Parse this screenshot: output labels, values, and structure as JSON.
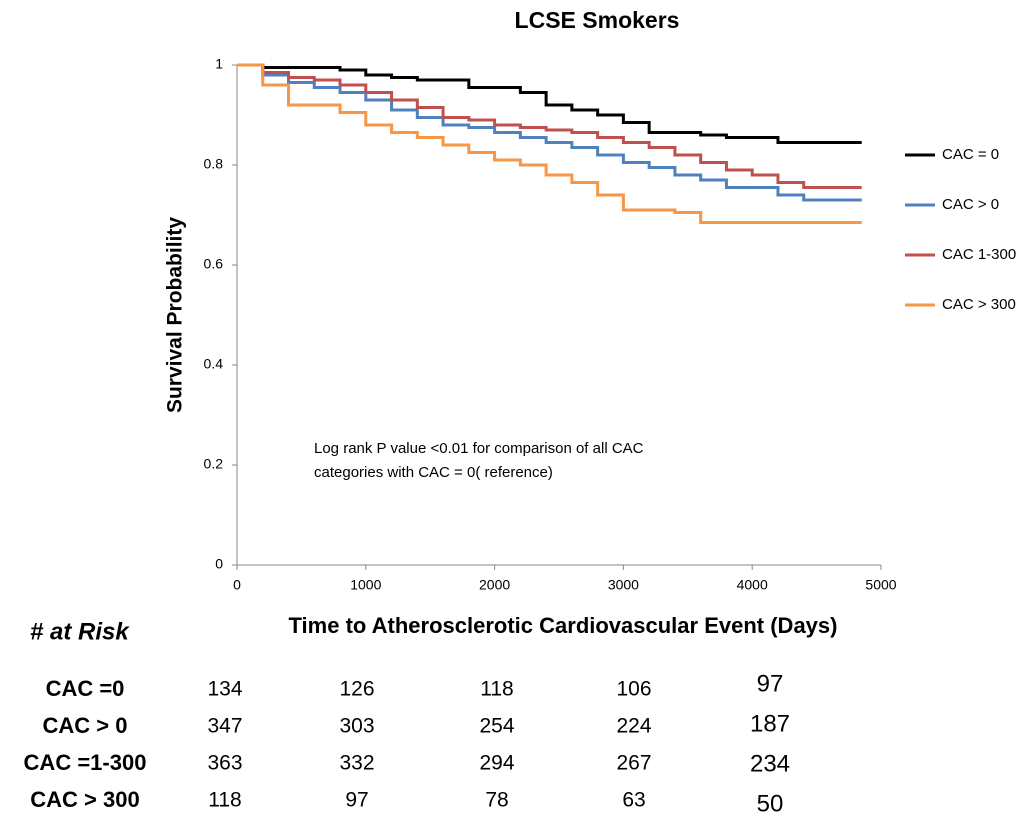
{
  "chart_data": {
    "type": "line",
    "step": true,
    "title": "LCSE Smokers",
    "x_label": "Time to Atherosclerotic Cardiovascular Event (Days)",
    "y_label": "Survival Probability",
    "annotation": [
      "Log rank P value <0.01 for comparison of all CAC",
      "categories with CAC = 0( reference)"
    ],
    "x": [
      0,
      200,
      400,
      600,
      800,
      1000,
      1200,
      1400,
      1600,
      1800,
      2000,
      2200,
      2400,
      2600,
      2800,
      3000,
      3200,
      3400,
      3600,
      3800,
      4000,
      4200,
      4400,
      4600,
      4850
    ],
    "series": [
      {
        "name": "CAC = 0",
        "color": "#000000",
        "values": [
          1,
          0.995,
          0.995,
          0.995,
          0.99,
          0.98,
          0.975,
          0.97,
          0.97,
          0.955,
          0.955,
          0.945,
          0.92,
          0.91,
          0.9,
          0.885,
          0.865,
          0.865,
          0.86,
          0.855,
          0.855,
          0.845,
          0.845,
          0.845,
          0.845
        ]
      },
      {
        "name": "CAC > 0",
        "color": "#4f81bd",
        "values": [
          1,
          0.98,
          0.965,
          0.955,
          0.945,
          0.93,
          0.91,
          0.895,
          0.88,
          0.875,
          0.865,
          0.855,
          0.845,
          0.835,
          0.82,
          0.805,
          0.795,
          0.78,
          0.77,
          0.755,
          0.755,
          0.74,
          0.73,
          0.73,
          0.73
        ]
      },
      {
        "name": "CAC 1-300",
        "color": "#c0504d",
        "values": [
          1,
          0.985,
          0.975,
          0.97,
          0.96,
          0.945,
          0.93,
          0.915,
          0.895,
          0.89,
          0.88,
          0.875,
          0.87,
          0.865,
          0.855,
          0.845,
          0.835,
          0.82,
          0.805,
          0.79,
          0.78,
          0.765,
          0.755,
          0.755,
          0.755
        ]
      },
      {
        "name": "CAC > 300",
        "color": "#f79646",
        "values": [
          1,
          0.96,
          0.92,
          0.92,
          0.905,
          0.88,
          0.865,
          0.855,
          0.84,
          0.825,
          0.81,
          0.8,
          0.78,
          0.765,
          0.74,
          0.71,
          0.71,
          0.705,
          0.685,
          0.685,
          0.685,
          0.685,
          0.685,
          0.685,
          0.685
        ]
      }
    ],
    "xlim": [
      0,
      5000
    ],
    "xticks": [
      0,
      1000,
      2000,
      3000,
      4000,
      5000
    ],
    "ylim": [
      0,
      1
    ],
    "yticks": [
      0,
      0.2,
      0.4,
      0.6,
      0.8,
      1
    ],
    "grid": false,
    "legend": "right"
  },
  "risk_table": {
    "title": "# at Risk",
    "rows": [
      {
        "label": "CAC =0",
        "values": [
          134,
          126,
          118,
          106,
          97
        ]
      },
      {
        "label": "CAC > 0",
        "values": [
          347,
          303,
          254,
          224,
          187
        ]
      },
      {
        "label": "CAC =1-300",
        "values": [
          363,
          332,
          294,
          267,
          234
        ]
      },
      {
        "label": "CAC > 300",
        "values": [
          118,
          97,
          78,
          63,
          50
        ]
      }
    ]
  }
}
